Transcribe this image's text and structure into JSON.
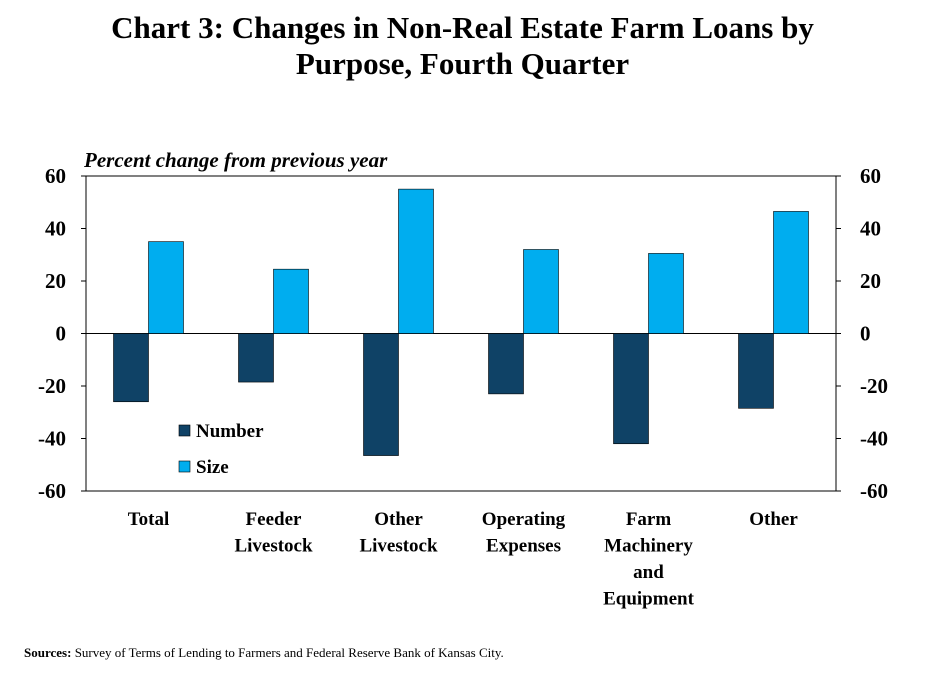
{
  "title_lines": [
    "Chart 3: Changes in Non-Real Estate Farm Loans by",
    "Purpose, Fourth Quarter"
  ],
  "footnote": {
    "label": "Sources:",
    "text": "Survey of Terms of Lending to Farmers and Federal Reserve Bank of Kansas City."
  },
  "colors": {
    "number": "#0f4266",
    "size": "#00adef"
  },
  "chart_data": {
    "type": "bar",
    "title": "Chart 3: Changes in Non-Real Estate Farm Loans by Purpose, Fourth Quarter",
    "ylabel": "Percent change from previous year",
    "xlabel": "",
    "ylim": [
      -60,
      60
    ],
    "yticks": [
      60,
      40,
      20,
      0,
      -20,
      -40,
      -60
    ],
    "categories": [
      [
        "Total"
      ],
      [
        "Feeder",
        "Livestock"
      ],
      [
        "Other",
        "Livestock"
      ],
      [
        "Operating",
        "Expenses"
      ],
      [
        "Farm",
        "Machinery",
        "and",
        "Equipment"
      ],
      [
        "Other"
      ]
    ],
    "series": [
      {
        "name": "Number",
        "values": [
          -26,
          -18.5,
          -46.5,
          -23,
          -42,
          -28.5
        ]
      },
      {
        "name": "Size",
        "values": [
          35,
          24.5,
          55,
          32,
          30.5,
          46.5
        ]
      }
    ],
    "legend_position": "lower-left inside plot",
    "grid": false,
    "right_axis_mirror": true
  }
}
